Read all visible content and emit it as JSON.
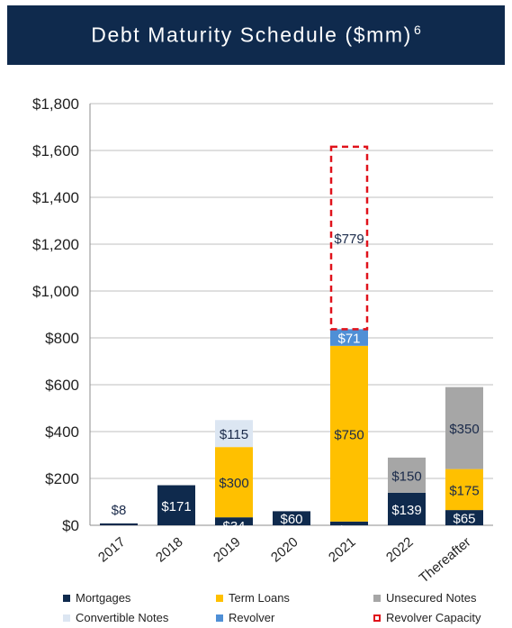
{
  "header": {
    "title": "Debt Maturity Schedule ($mm)",
    "footnote": "6"
  },
  "colors": {
    "mortgages": "#0f2a4d",
    "term_loans": "#ffc000",
    "unsecured_notes": "#a6a6a6",
    "convertible_notes": "#dce6f2",
    "revolver": "#4f8fd6",
    "revolver_capacity": "#e0121b"
  },
  "chart_data": {
    "type": "bar",
    "stacked": true,
    "categories": [
      "2017",
      "2018",
      "2019",
      "2020",
      "2021",
      "2022",
      "Thereafter"
    ],
    "ylim": [
      0,
      1800
    ],
    "yticks": [
      0,
      200,
      400,
      600,
      800,
      1000,
      1200,
      1400,
      1600,
      1800
    ],
    "ytick_labels": [
      "$0",
      "$200",
      "$400",
      "$600",
      "$800",
      "$1,000",
      "$1,200",
      "$1,400",
      "$1,600",
      "$1,800"
    ],
    "grid": true,
    "legend_position": "bottom",
    "series": [
      {
        "name": "Mortgages",
        "key": "mortgages",
        "values": [
          8,
          171,
          34,
          60,
          16,
          139,
          65
        ],
        "labels": [
          "$8",
          "$171",
          "$34",
          "$60",
          "$16",
          "$139",
          "$65"
        ]
      },
      {
        "name": "Term Loans",
        "key": "term_loans",
        "values": [
          0,
          0,
          300,
          0,
          750,
          0,
          175
        ],
        "labels": [
          "",
          "",
          "$300",
          "",
          "$750",
          "",
          "$175"
        ]
      },
      {
        "name": "Unsecured Notes",
        "key": "unsecured_notes",
        "values": [
          0,
          0,
          0,
          0,
          0,
          150,
          350
        ],
        "labels": [
          "",
          "",
          "",
          "",
          "",
          "$150",
          "$350"
        ]
      },
      {
        "name": "Convertible Notes",
        "key": "convertible_notes",
        "values": [
          0,
          0,
          115,
          0,
          0,
          0,
          0
        ],
        "labels": [
          "",
          "",
          "$115",
          "",
          "",
          "",
          ""
        ]
      },
      {
        "name": "Revolver",
        "key": "revolver",
        "values": [
          0,
          0,
          0,
          0,
          71,
          0,
          0
        ],
        "labels": [
          "",
          "",
          "",
          "",
          "$71",
          "",
          ""
        ]
      },
      {
        "name": "Revolver Capacity",
        "key": "revolver_capacity",
        "values": [
          0,
          0,
          0,
          0,
          779,
          0,
          0
        ],
        "labels": [
          "",
          "",
          "",
          "",
          "$779",
          "",
          ""
        ],
        "style": "dashed-outline"
      }
    ],
    "legend": [
      {
        "label": "Mortgages",
        "key": "mortgages"
      },
      {
        "label": "Term Loans",
        "key": "term_loans"
      },
      {
        "label": "Unsecured Notes",
        "key": "unsecured_notes"
      },
      {
        "label": "Convertible Notes",
        "key": "convertible_notes"
      },
      {
        "label": "Revolver",
        "key": "revolver"
      },
      {
        "label": "Revolver Capacity",
        "key": "revolver_capacity"
      }
    ]
  }
}
